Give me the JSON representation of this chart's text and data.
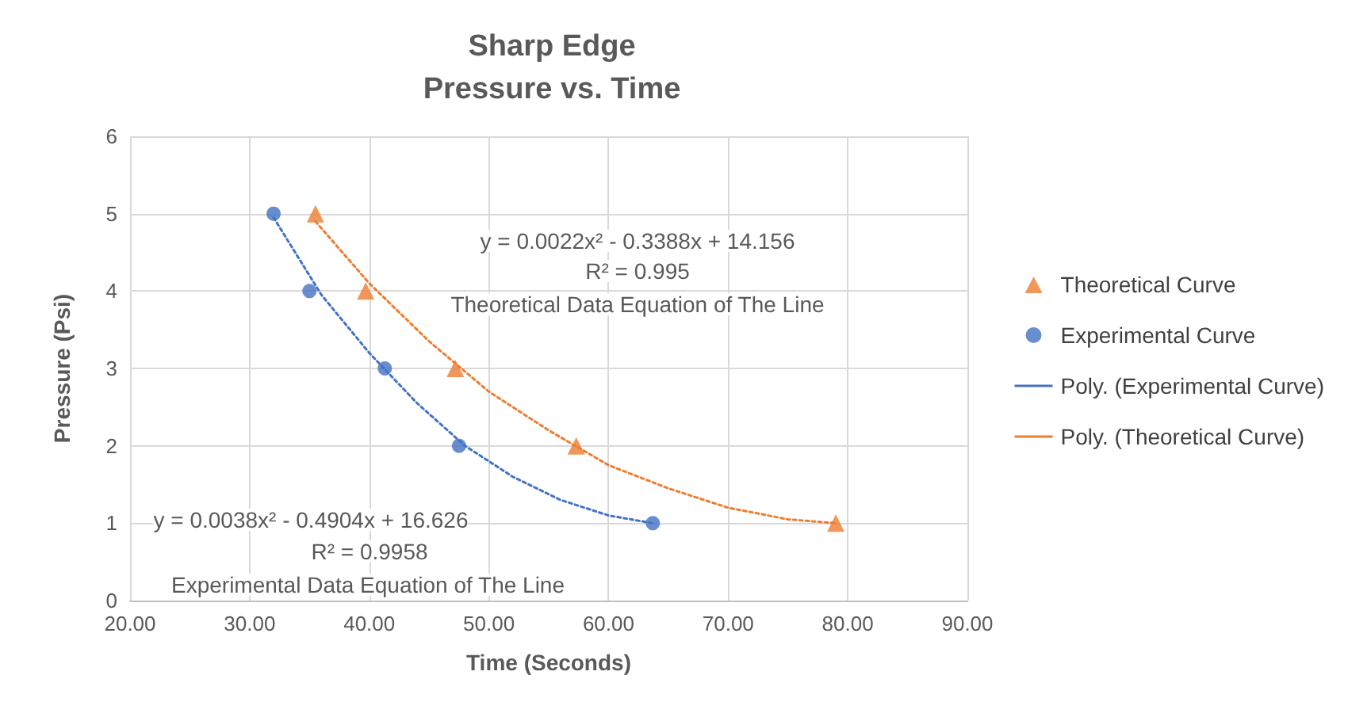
{
  "chart_data": {
    "type": "scatter",
    "title": "Sharp Edge",
    "subtitle": "Pressure vs. Time",
    "xlabel": "Time (Seconds)",
    "ylabel": "Pressure (Psi)",
    "xlim": [
      20,
      90
    ],
    "xticks": [
      {
        "value": 20,
        "label": "20.00"
      },
      {
        "value": 30,
        "label": "30.00"
      },
      {
        "value": 40,
        "label": "40.00"
      },
      {
        "value": 50,
        "label": "50.00"
      },
      {
        "value": 60,
        "label": "60.00"
      },
      {
        "value": 70,
        "label": "70.00"
      },
      {
        "value": 80,
        "label": "80.00"
      },
      {
        "value": 90,
        "label": "90.00"
      }
    ],
    "ylim": [
      0,
      6
    ],
    "yticks": [
      0,
      1,
      2,
      3,
      4,
      5,
      6
    ],
    "grid": true,
    "legend": "right",
    "series": [
      {
        "name": "Theoretical Curve",
        "color": "#ed7d31",
        "marker": "triangle",
        "x": [
          35.5,
          39.7,
          47.2,
          57.3,
          79
        ],
        "values": [
          5,
          4,
          3,
          2,
          1
        ]
      },
      {
        "name": "Experimental Curve",
        "color": "#4472c4",
        "marker": "circle",
        "x": [
          32,
          35,
          41.3,
          47.5,
          63.7
        ],
        "values": [
          5,
          4,
          3,
          2,
          1
        ]
      },
      {
        "name": "Poly. (Experimental Curve)",
        "type": "line",
        "color": "#4472c4",
        "marker": "none",
        "line_style": "dotted",
        "x": [
          32,
          36,
          40,
          44,
          48,
          52,
          56,
          60,
          63.7
        ],
        "values": [
          4.95,
          3.95,
          3.2,
          2.55,
          2.0,
          1.6,
          1.3,
          1.1,
          1.0
        ]
      },
      {
        "name": "Poly. (Theoretical Curve)",
        "type": "line",
        "color": "#ed7d31",
        "marker": "none",
        "line_style": "dotted",
        "x": [
          35.5,
          40,
          45,
          50,
          55,
          60,
          65,
          70,
          75,
          79
        ],
        "values": [
          4.9,
          4.1,
          3.35,
          2.7,
          2.2,
          1.75,
          1.45,
          1.2,
          1.05,
          1.0
        ]
      }
    ],
    "annotations": [
      "y = 0.0022x² - 0.3388x + 14.156",
      "R² = 0.995",
      "Theoretical Data Equation of The Line",
      "y = 0.0038x² - 0.4904x + 16.626",
      "R² = 0.9958",
      "Experimental Data Equation of The Line"
    ]
  }
}
